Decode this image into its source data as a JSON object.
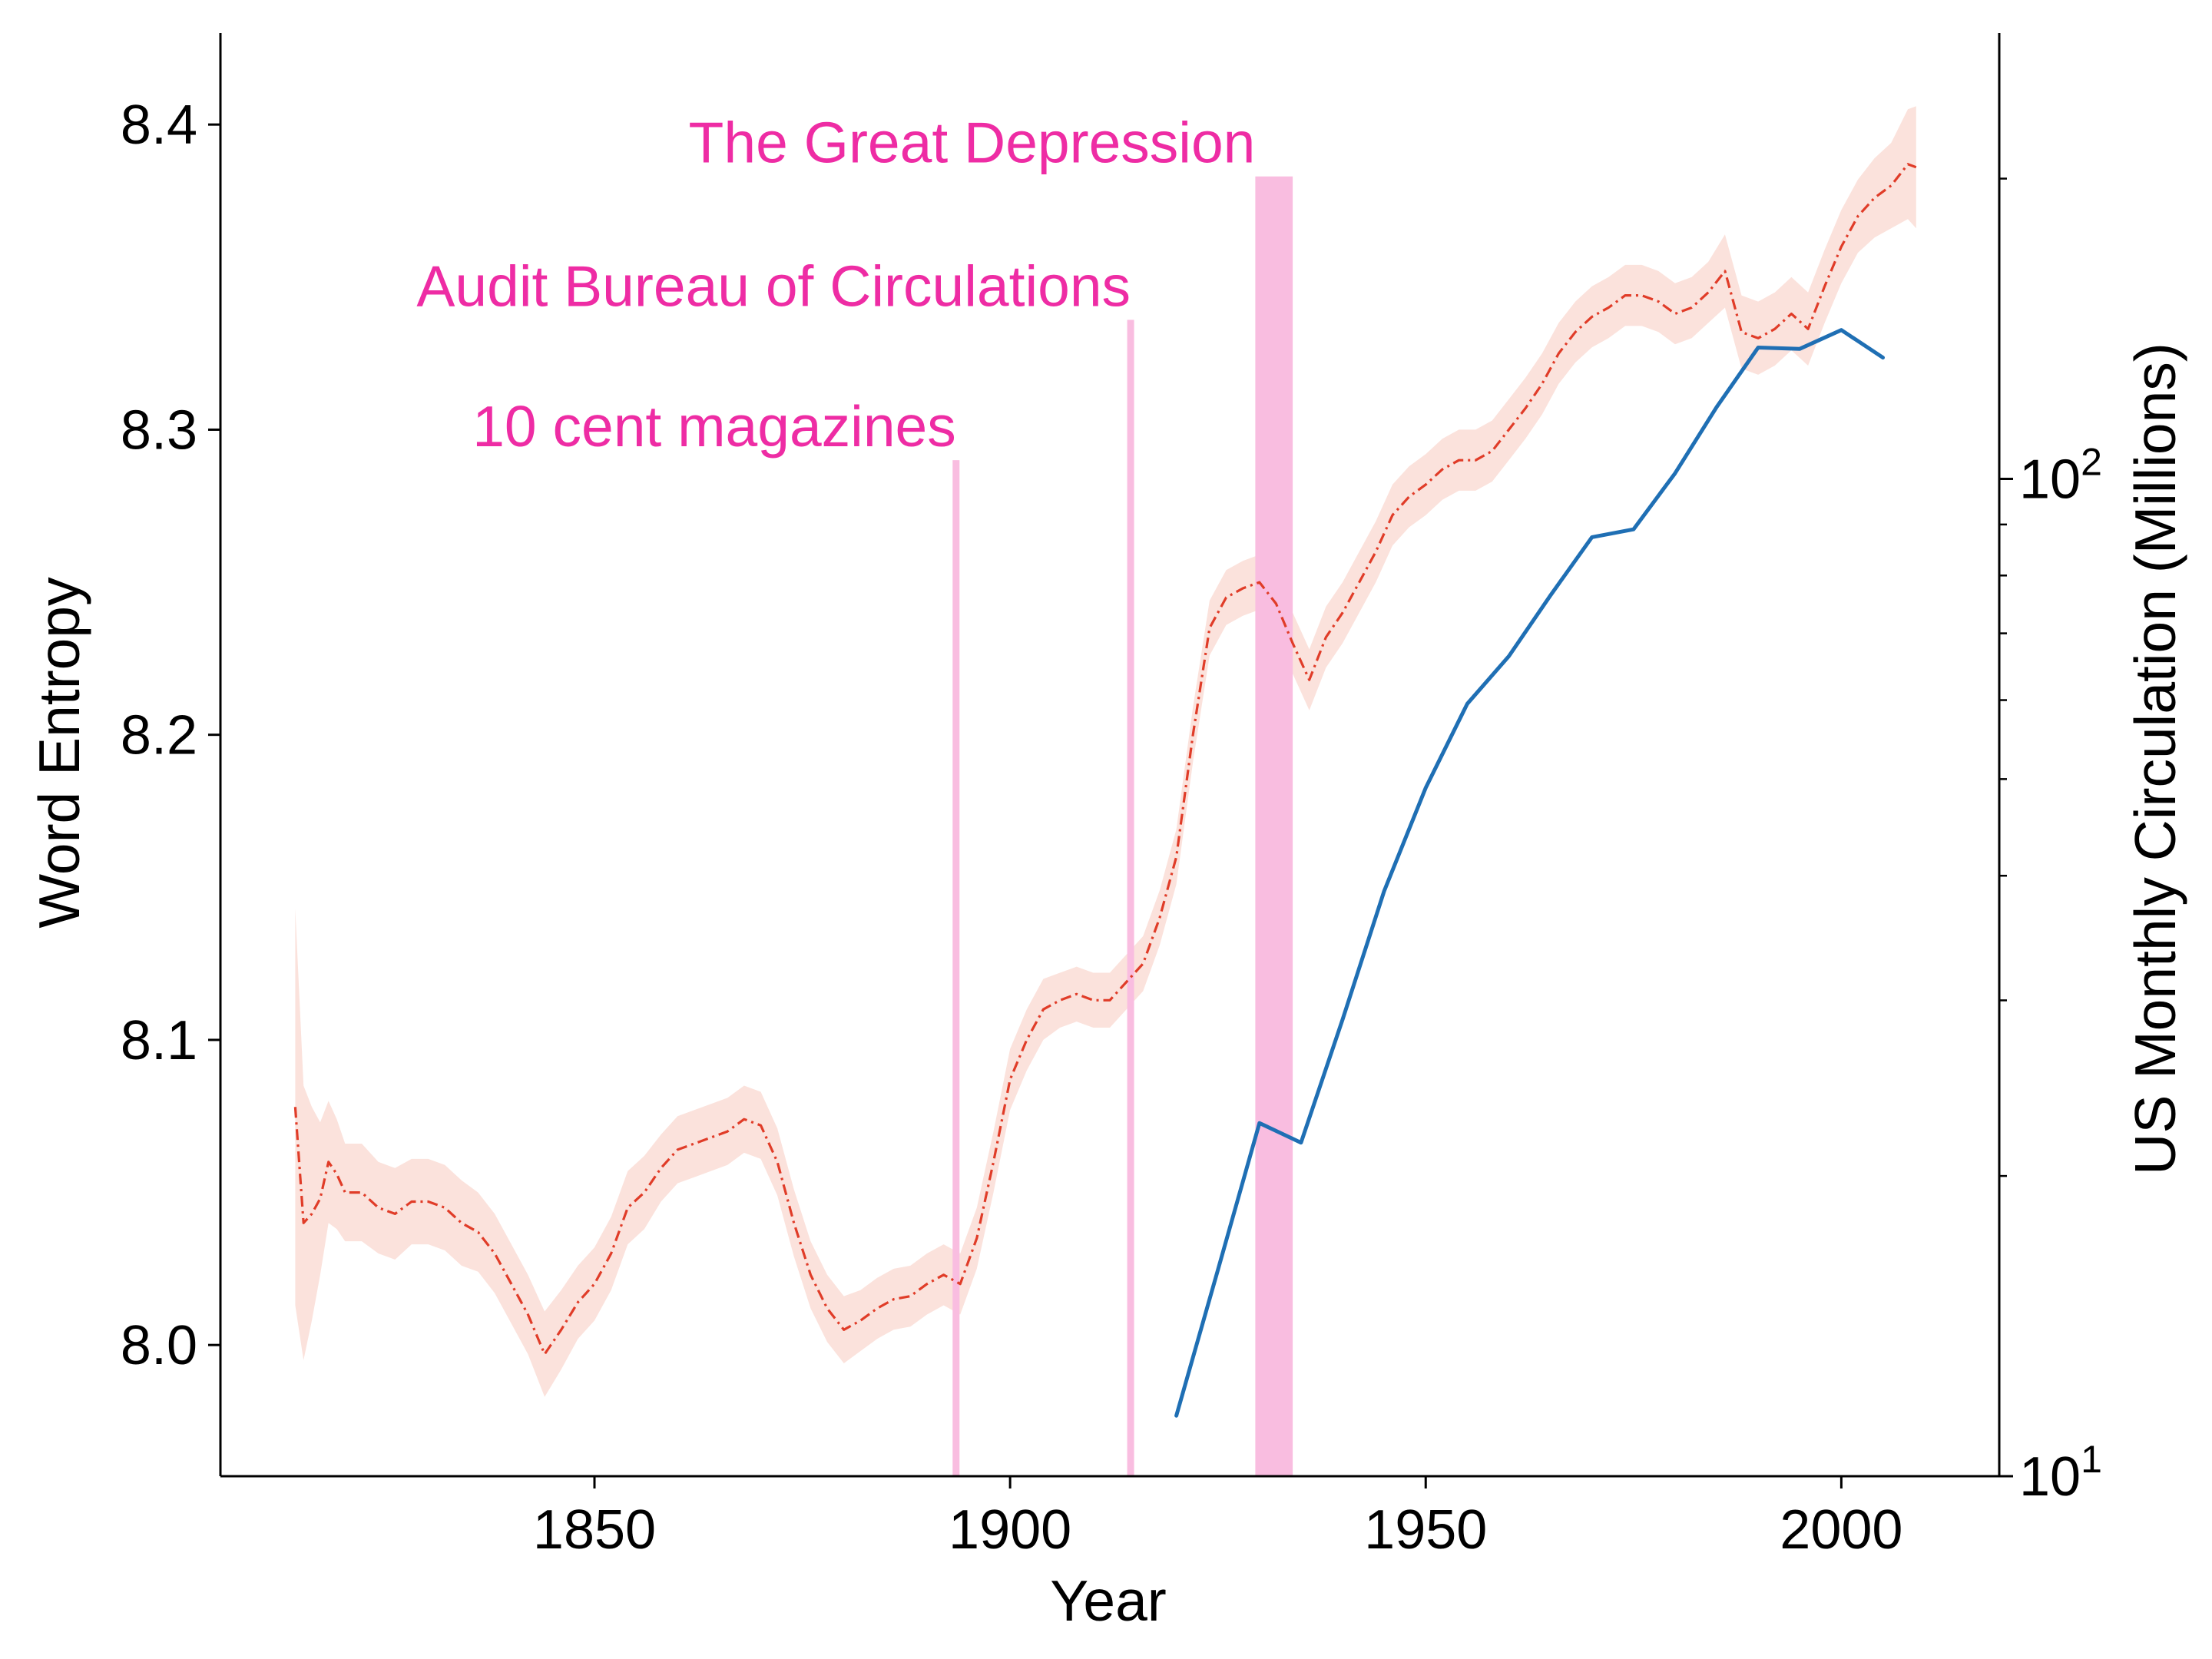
{
  "chart_data": {
    "type": "line",
    "xlabel": "Year",
    "ylabel_left": "Word Entropy",
    "ylabel_right": "US Monthly Circulation (Millions)",
    "xlim": [
      1805,
      2019
    ],
    "ylim_left": [
      7.957,
      8.43
    ],
    "ylim_right_log10": [
      1,
      2.447
    ],
    "right_scale": "log",
    "x_ticks": [
      1850,
      1900,
      1950,
      2000
    ],
    "y_ticks_left": [
      8.0,
      8.1,
      8.2,
      8.3,
      8.4
    ],
    "y_ticks_right": [
      {
        "exp": "1",
        "value": 10
      },
      {
        "exp": "2",
        "value": 100
      }
    ],
    "tick_base": "10",
    "grid": false,
    "colors": {
      "entropy_line": "#e03c28",
      "entropy_band": "#fbe2dc",
      "circulation_line": "#1f6fb4",
      "annotation": "#ee2ca4",
      "annotation_fill": "#f9bde0"
    },
    "annotations": [
      {
        "label": "10 cent magazines",
        "x": 1893.5,
        "kind": "line",
        "top": 8.29
      },
      {
        "label": "Audit Bureau of Circulations",
        "x": 1914.5,
        "kind": "line",
        "top": 8.336
      },
      {
        "label": "The Great Depression",
        "x_start": 1929.5,
        "x_end": 1934,
        "kind": "span",
        "top": 8.383
      }
    ],
    "series": [
      {
        "name": "Word Entropy",
        "axis": "left",
        "style": "dashdot",
        "x": [
          1814,
          1815,
          1816,
          1817,
          1818,
          1819,
          1820,
          1822,
          1824,
          1826,
          1828,
          1830,
          1832,
          1834,
          1836,
          1838,
          1840,
          1842,
          1844,
          1846,
          1848,
          1850,
          1852,
          1854,
          1856,
          1858,
          1860,
          1862,
          1864,
          1866,
          1868,
          1870,
          1872,
          1874,
          1876,
          1878,
          1880,
          1882,
          1884,
          1886,
          1888,
          1890,
          1892,
          1894,
          1896,
          1898,
          1900,
          1902,
          1904,
          1906,
          1908,
          1910,
          1912,
          1914,
          1916,
          1918,
          1920,
          1922,
          1924,
          1926,
          1928,
          1930,
          1932,
          1934,
          1936,
          1938,
          1940,
          1942,
          1944,
          1946,
          1948,
          1950,
          1952,
          1954,
          1956,
          1958,
          1960,
          1962,
          1964,
          1966,
          1968,
          1970,
          1972,
          1974,
          1976,
          1978,
          1980,
          1982,
          1984,
          1986,
          1988,
          1990,
          1992,
          1994,
          1996,
          1998,
          2000,
          2002,
          2004,
          2006,
          2008,
          2009
        ],
        "y": [
          8.078,
          8.04,
          8.043,
          8.048,
          8.06,
          8.056,
          8.05,
          8.05,
          8.045,
          8.043,
          8.047,
          8.047,
          8.045,
          8.04,
          8.037,
          8.03,
          8.02,
          8.01,
          7.997,
          8.005,
          8.014,
          8.02,
          8.03,
          8.045,
          8.05,
          8.058,
          8.064,
          8.066,
          8.068,
          8.07,
          8.074,
          8.072,
          8.06,
          8.04,
          8.023,
          8.012,
          8.005,
          8.008,
          8.012,
          8.015,
          8.016,
          8.02,
          8.023,
          8.02,
          8.035,
          8.06,
          8.087,
          8.1,
          8.11,
          8.113,
          8.115,
          8.113,
          8.113,
          8.119,
          8.125,
          8.14,
          8.16,
          8.2,
          8.235,
          8.245,
          8.248,
          8.25,
          8.243,
          8.23,
          8.218,
          8.232,
          8.24,
          8.25,
          8.26,
          8.272,
          8.278,
          8.282,
          8.287,
          8.29,
          8.29,
          8.293,
          8.3,
          8.307,
          8.315,
          8.325,
          8.332,
          8.337,
          8.34,
          8.344,
          8.344,
          8.342,
          8.338,
          8.34,
          8.345,
          8.352,
          8.332,
          8.33,
          8.333,
          8.338,
          8.333,
          8.347,
          8.36,
          8.37,
          8.376,
          8.38,
          8.387,
          8.386
        ],
        "band_halfwidth": [
          0.065,
          0.045,
          0.035,
          0.025,
          0.02,
          0.018,
          0.016,
          0.016,
          0.015,
          0.015,
          0.014,
          0.014,
          0.014,
          0.014,
          0.013,
          0.013,
          0.013,
          0.013,
          0.014,
          0.013,
          0.012,
          0.012,
          0.012,
          0.012,
          0.012,
          0.011,
          0.011,
          0.011,
          0.011,
          0.011,
          0.011,
          0.011,
          0.011,
          0.011,
          0.011,
          0.011,
          0.011,
          0.01,
          0.01,
          0.01,
          0.01,
          0.01,
          0.01,
          0.01,
          0.01,
          0.01,
          0.01,
          0.01,
          0.01,
          0.009,
          0.009,
          0.009,
          0.009,
          0.009,
          0.009,
          0.009,
          0.009,
          0.009,
          0.009,
          0.009,
          0.009,
          0.009,
          0.009,
          0.01,
          0.01,
          0.01,
          0.01,
          0.01,
          0.01,
          0.01,
          0.01,
          0.01,
          0.01,
          0.01,
          0.01,
          0.01,
          0.01,
          0.01,
          0.01,
          0.01,
          0.01,
          0.01,
          0.01,
          0.01,
          0.01,
          0.01,
          0.01,
          0.01,
          0.01,
          0.012,
          0.012,
          0.012,
          0.012,
          0.012,
          0.012,
          0.012,
          0.012,
          0.012,
          0.013,
          0.014,
          0.018,
          0.02
        ]
      },
      {
        "name": "US Monthly Circulation",
        "axis": "right",
        "style": "solid",
        "x": [
          1920,
          1925,
          1930,
          1935,
          1940,
          1945,
          1950,
          1955,
          1960,
          1965,
          1970,
          1975,
          1980,
          1985,
          1990,
          1995,
          2000,
          2005
        ],
        "y": [
          11.5,
          16.1,
          22.6,
          21.6,
          28.7,
          38.6,
          49.0,
          59.5,
          66.4,
          76.4,
          87.4,
          89.0,
          101.3,
          118.0,
          135.4,
          135.0,
          141.0,
          132.3
        ]
      }
    ]
  }
}
